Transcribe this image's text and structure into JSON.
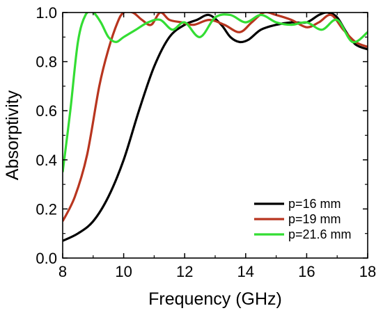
{
  "chart_data": {
    "type": "line",
    "xlabel": "Frequency (GHz)",
    "ylabel": "Absorptivity",
    "xlim": [
      8,
      18
    ],
    "ylim": [
      0.0,
      1.0
    ],
    "x_ticks": [
      "8",
      "10",
      "12",
      "14",
      "16",
      "18"
    ],
    "y_ticks": [
      "0.0",
      "0.2",
      "0.4",
      "0.6",
      "0.8",
      "1.0"
    ],
    "legend_position": "bottom-right",
    "grid": false,
    "series": [
      {
        "name": "p=16 mm",
        "color": "#000000",
        "x": [
          8.0,
          8.5,
          9.0,
          9.5,
          10.0,
          10.5,
          11.0,
          11.5,
          12.0,
          12.4,
          12.8,
          13.2,
          13.5,
          13.8,
          14.1,
          14.5,
          15.0,
          15.5,
          16.0,
          16.4,
          16.7,
          17.0,
          17.3,
          17.6,
          18.0
        ],
        "y": [
          0.07,
          0.1,
          0.15,
          0.25,
          0.4,
          0.6,
          0.78,
          0.9,
          0.95,
          0.97,
          0.99,
          0.95,
          0.9,
          0.88,
          0.89,
          0.93,
          0.95,
          0.96,
          0.96,
          0.99,
          1.0,
          0.98,
          0.92,
          0.87,
          0.85
        ]
      },
      {
        "name": "p=19 mm",
        "color": "#b8351f",
        "x": [
          8.0,
          8.4,
          8.8,
          9.2,
          9.5,
          9.8,
          10.0,
          10.3,
          10.6,
          10.9,
          11.2,
          11.5,
          11.9,
          12.3,
          12.8,
          13.3,
          13.8,
          14.2,
          14.6,
          15.0,
          15.5,
          16.0,
          16.4,
          16.8,
          17.2,
          17.6,
          18.0
        ],
        "y": [
          0.15,
          0.25,
          0.42,
          0.7,
          0.85,
          0.96,
          1.0,
          1.0,
          0.97,
          0.95,
          1.0,
          0.97,
          0.96,
          0.95,
          0.97,
          0.95,
          0.92,
          0.96,
          1.0,
          0.99,
          0.97,
          0.94,
          0.96,
          0.99,
          0.93,
          0.88,
          0.86
        ]
      },
      {
        "name": "p=21.6 mm",
        "color": "#33dd33",
        "x": [
          8.0,
          8.25,
          8.5,
          8.75,
          9.0,
          9.25,
          9.5,
          9.75,
          10.0,
          10.4,
          10.8,
          11.2,
          11.6,
          12.0,
          12.5,
          13.0,
          13.5,
          14.0,
          14.5,
          15.0,
          15.5,
          16.0,
          16.5,
          17.0,
          17.5,
          18.0
        ],
        "y": [
          0.35,
          0.6,
          0.88,
          0.99,
          1.0,
          0.96,
          0.9,
          0.88,
          0.9,
          0.93,
          0.96,
          0.97,
          0.93,
          0.96,
          0.9,
          0.98,
          0.99,
          0.96,
          0.99,
          0.96,
          0.95,
          0.96,
          0.93,
          0.97,
          0.88,
          0.92
        ]
      }
    ]
  }
}
